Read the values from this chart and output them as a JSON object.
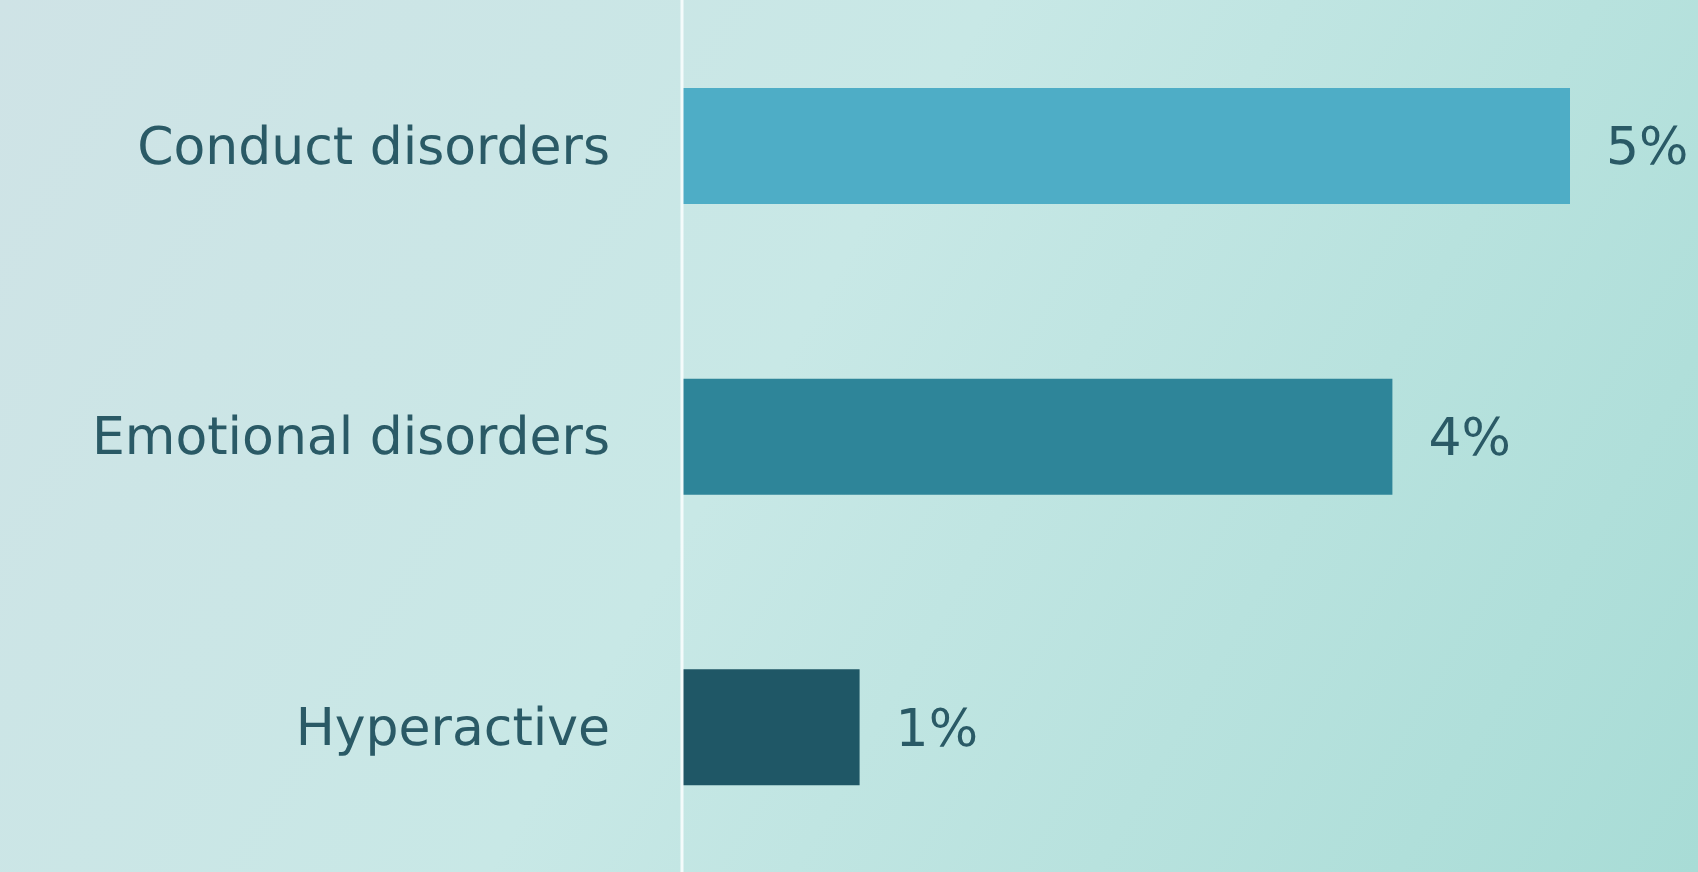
{
  "chart_data": {
    "type": "bar",
    "orientation": "horizontal",
    "categories": [
      "Conduct disorders",
      "Emotional disorders",
      "Hyperactive"
    ],
    "values": [
      5,
      4,
      1
    ],
    "colors": [
      "#4eadc6",
      "#2e8599",
      "#1f5766"
    ],
    "value_labels": [
      "5%",
      "4%",
      "1%"
    ],
    "xlim": [
      0,
      5
    ],
    "grid": false,
    "legend": false
  }
}
